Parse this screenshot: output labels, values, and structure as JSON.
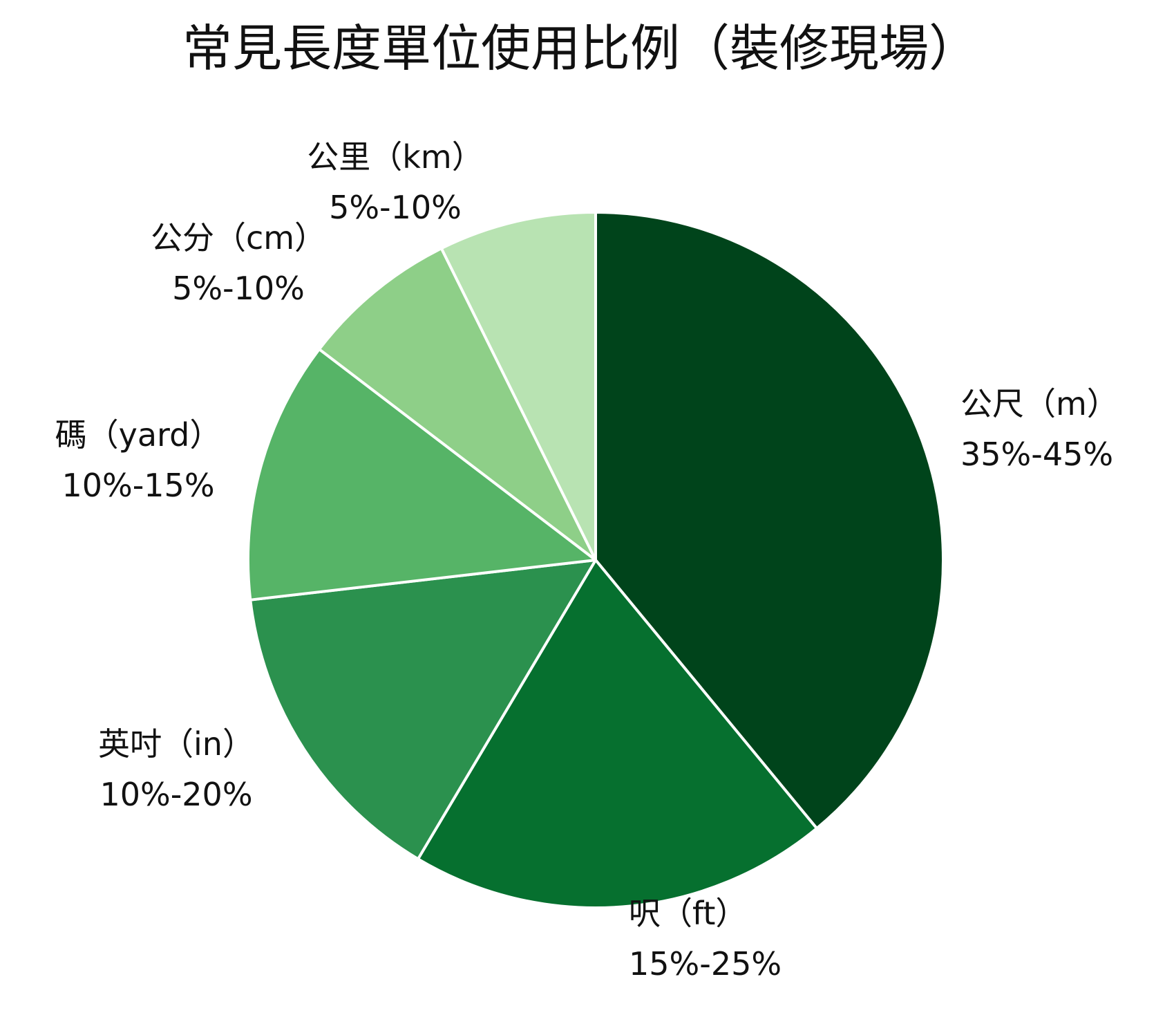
{
  "chart_data": {
    "type": "pie",
    "title": "常見長度單位使用比例（裝修現場）",
    "slices": [
      {
        "name": "公尺（m）",
        "range": "35%-45%",
        "value": 40,
        "color": "#00441b"
      },
      {
        "name": "呎（ft）",
        "range": "15%-25%",
        "value": 20,
        "color": "#06702f"
      },
      {
        "name": "英吋（in）",
        "range": "10%-20%",
        "value": 15,
        "color": "#2b914e"
      },
      {
        "name": "碼（yard）",
        "range": "10%-15%",
        "value": 12.5,
        "color": "#56b467"
      },
      {
        "name": "公分（cm）",
        "range": "5%-10%",
        "value": 7.5,
        "color": "#8ecf88"
      },
      {
        "name": "公里（km）",
        "range": "5%-10%",
        "value": 7.5,
        "color": "#b8e3b2"
      }
    ]
  }
}
